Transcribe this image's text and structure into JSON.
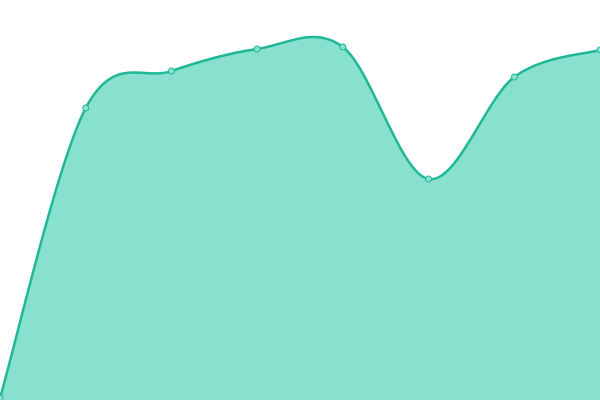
{
  "chart_data": {
    "type": "area",
    "categories": [
      null,
      null,
      null,
      null,
      null,
      null,
      null,
      null
    ],
    "values": [
      2,
      292,
      329,
      351,
      353,
      221,
      323,
      350
    ],
    "ylim": [
      0,
      400
    ],
    "color": "#1fb896",
    "fill": "#88e0cf"
  }
}
